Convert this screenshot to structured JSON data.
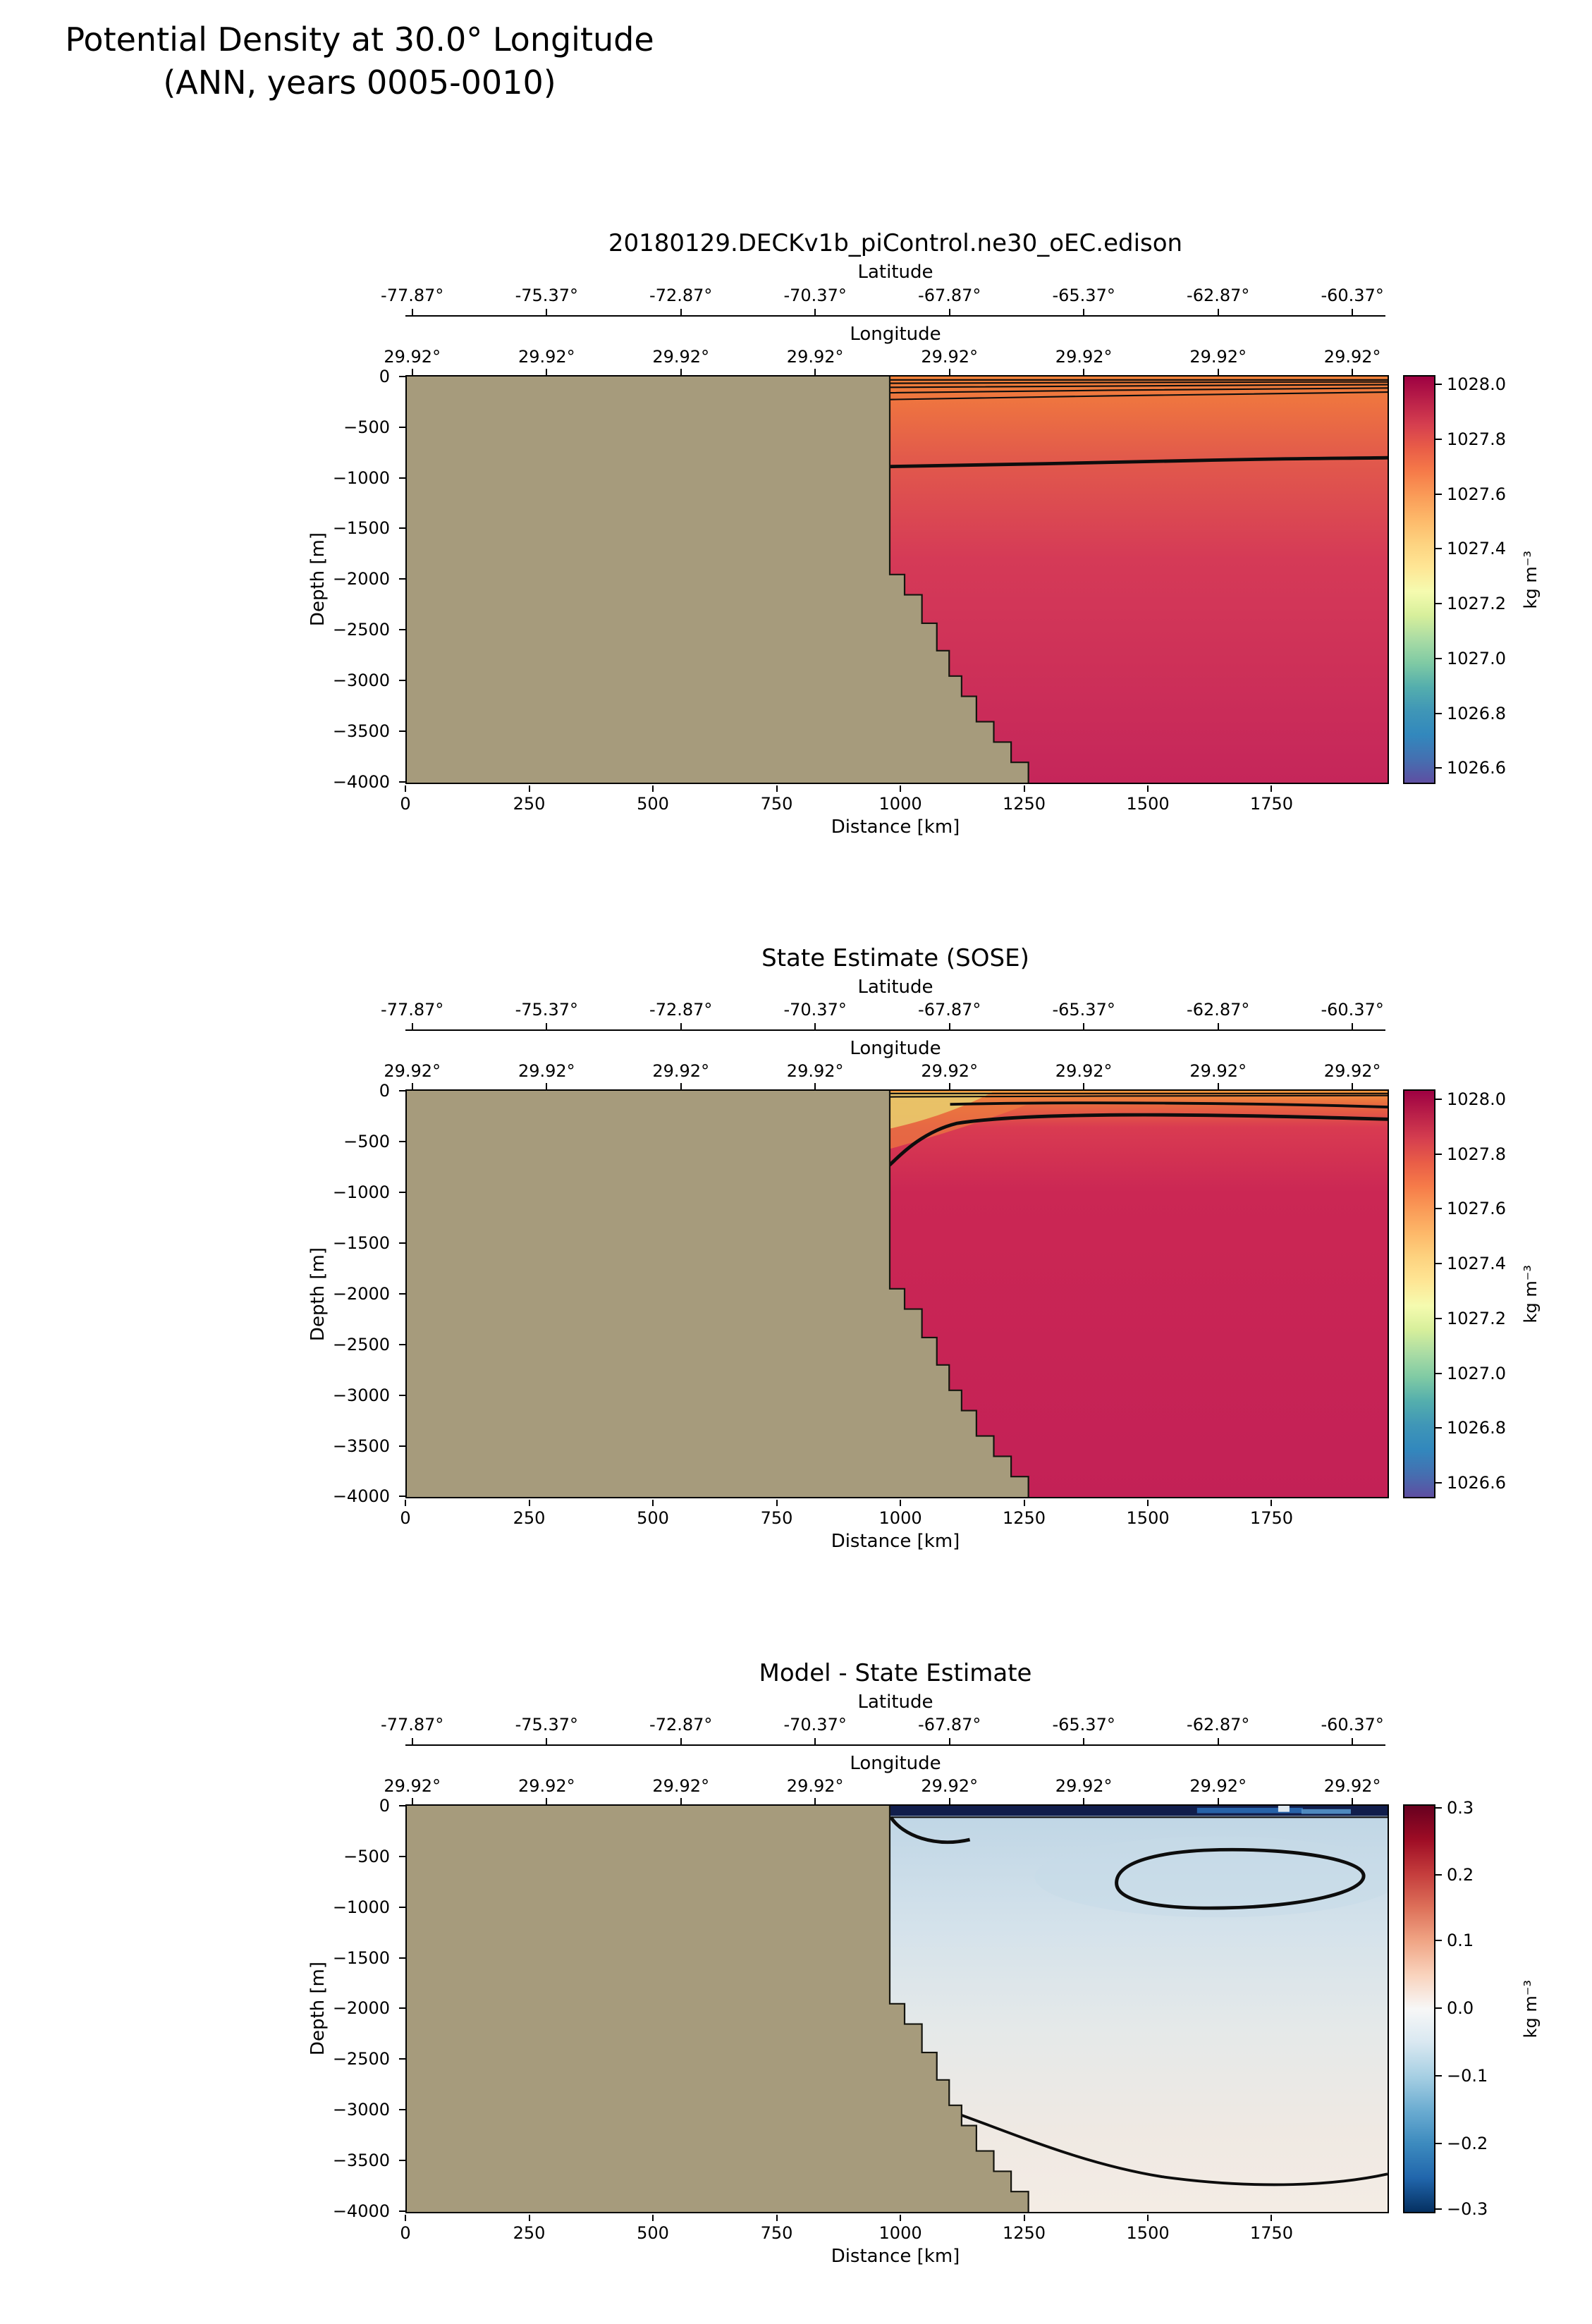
{
  "page": {
    "title_line1": "Potential Density at 30.0° Longitude",
    "title_line2": "(ANN, years 0005-0010)"
  },
  "axes": {
    "latitude": {
      "label": "Latitude",
      "ticks": [
        "-77.87°",
        "-75.37°",
        "-72.87°",
        "-70.37°",
        "-67.87°",
        "-65.37°",
        "-62.87°",
        "-60.37°"
      ],
      "positions_pct": [
        0.7,
        14.41,
        28.11,
        41.81,
        55.52,
        69.22,
        82.93,
        96.63
      ]
    },
    "longitude": {
      "label": "Longitude",
      "ticks": [
        "29.92°",
        "29.92°",
        "29.92°",
        "29.92°",
        "29.92°",
        "29.92°",
        "29.92°",
        "29.92°"
      ],
      "positions_pct": [
        0.7,
        14.41,
        28.11,
        41.81,
        55.52,
        69.22,
        82.93,
        96.63
      ]
    },
    "depth": {
      "label": "Depth [m]",
      "ticks": [
        "0",
        "−500",
        "−1000",
        "−1500",
        "−2000",
        "−2500",
        "−3000",
        "−3500",
        "−4000"
      ],
      "positions_pct": [
        0,
        12.5,
        25,
        37.5,
        50,
        62.5,
        75,
        87.5,
        100
      ]
    },
    "distance": {
      "label": "Distance [km]",
      "ticks": [
        "0",
        "250",
        "500",
        "750",
        "1000",
        "1250",
        "1500",
        "1750"
      ],
      "positions_pct": [
        0,
        12.63,
        25.25,
        37.88,
        50.51,
        63.13,
        75.76,
        88.38
      ]
    }
  },
  "panels": [
    {
      "title": "20180129.DECKv1b_piControl.ne30_oEC.edison",
      "colorbar": {
        "unit": "kg m⁻³",
        "ticks": [
          "1028.0",
          "1027.8",
          "1027.6",
          "1027.4",
          "1027.2",
          "1027.0",
          "1026.8",
          "1026.6"
        ],
        "positions_pct": [
          2.0,
          15.5,
          29.0,
          42.5,
          56.1,
          69.6,
          83.1,
          96.6
        ],
        "gradient": [
          "#9e0142",
          "#ba2049",
          "#d53e4f",
          "#e95d47",
          "#f67b49",
          "#fa9c58",
          "#fdb96a",
          "#fdd380",
          "#fee695",
          "#f5fbaf",
          "#d7ef9b",
          "#aadca4",
          "#7fcaa4",
          "#54aead",
          "#3f96b7",
          "#3288bd",
          "#4470b1",
          "#5e4fa2"
        ]
      }
    },
    {
      "title": "State Estimate (SOSE)",
      "colorbar": {
        "unit": "kg m⁻³",
        "ticks": [
          "1028.0",
          "1027.8",
          "1027.6",
          "1027.4",
          "1027.2",
          "1027.0",
          "1026.8",
          "1026.6"
        ],
        "positions_pct": [
          2.0,
          15.5,
          29.0,
          42.5,
          56.1,
          69.6,
          83.1,
          96.6
        ],
        "gradient": [
          "#9e0142",
          "#ba2049",
          "#d53e4f",
          "#e95d47",
          "#f67b49",
          "#fa9c58",
          "#fdb96a",
          "#fdd380",
          "#fee695",
          "#f5fbaf",
          "#d7ef9b",
          "#aadca4",
          "#7fcaa4",
          "#54aead",
          "#3f96b7",
          "#3288bd",
          "#4470b1",
          "#5e4fa2"
        ]
      }
    },
    {
      "title": "Model - State Estimate",
      "colorbar": {
        "unit": "kg m⁻³",
        "ticks": [
          "0.3",
          "0.2",
          "0.1",
          "0.0",
          "−0.1",
          "−0.2",
          "−0.3"
        ],
        "positions_pct": [
          0.5,
          17.0,
          33.3,
          50.0,
          66.7,
          83.3,
          99.5
        ],
        "gradient": [
          "#67001f",
          "#9e0c25",
          "#c43c3c",
          "#dd7059",
          "#f0a585",
          "#f9d3bd",
          "#f7f7f7",
          "#d9e8f1",
          "#a6cfe3",
          "#6bacd1",
          "#3c8abe",
          "#2166ac",
          "#053061"
        ]
      }
    }
  ],
  "chart_data": {
    "type": "heatmap",
    "figure_title": "Potential Density at 30.0° Longitude (ANN, years 0005-0010)",
    "x": {
      "label": "Distance [km]",
      "range": [
        0,
        1980
      ],
      "ticks": [
        0,
        250,
        500,
        750,
        1000,
        1250,
        1500,
        1750
      ]
    },
    "y": {
      "label": "Depth [m]",
      "range": [
        0,
        -4000
      ],
      "ticks": [
        0,
        -500,
        -1000,
        -1500,
        -2000,
        -2500,
        -3000,
        -3500,
        -4000
      ]
    },
    "top_axes": {
      "latitude_deg": [
        -77.87,
        -75.37,
        -72.87,
        -70.37,
        -67.87,
        -65.37,
        -62.87,
        -60.37
      ],
      "longitude_deg": [
        29.92,
        29.92,
        29.92,
        29.92,
        29.92,
        29.92,
        29.92,
        29.92
      ]
    },
    "land_color": "#a69b7c",
    "panels": [
      {
        "title": "20180129.DECKv1b_piControl.ne30_oEC.edison",
        "colorbar": {
          "unit": "kg m⁻³",
          "min": 1026.5,
          "max": 1028.05,
          "ticks": [
            1028.0,
            1027.8,
            1027.6,
            1027.4,
            1027.2,
            1027.0,
            1026.8,
            1026.6
          ],
          "colormap": "Spectral_r"
        },
        "bathymetry_km_m": [
          [
            0,
            0
          ],
          [
            975,
            0
          ],
          [
            975,
            -1950
          ],
          [
            1005,
            -1950
          ],
          [
            1005,
            -2150
          ],
          [
            1040,
            -2150
          ],
          [
            1040,
            -2430
          ],
          [
            1070,
            -2430
          ],
          [
            1070,
            -2700
          ],
          [
            1095,
            -2700
          ],
          [
            1095,
            -2950
          ],
          [
            1120,
            -2950
          ],
          [
            1120,
            -3150
          ],
          [
            1150,
            -3150
          ],
          [
            1150,
            -3400
          ],
          [
            1185,
            -3400
          ],
          [
            1185,
            -3600
          ],
          [
            1220,
            -3600
          ],
          [
            1220,
            -3800
          ],
          [
            1255,
            -3800
          ],
          [
            1255,
            -4000
          ],
          [
            0,
            -4000
          ]
        ],
        "field_summary": "Density ~1027.5 kg/m3 at surface (orange) increasing to ~1027.9 (deep crimson) at 4000 m; dense contour banding in the top 150 m east of the shelf; bold contour near 870 m depth running nearly flat to the east."
      },
      {
        "title": "State Estimate (SOSE)",
        "colorbar": {
          "unit": "kg m⁻³",
          "min": 1026.5,
          "max": 1028.05,
          "ticks": [
            1028.0,
            1027.8,
            1027.6,
            1027.4,
            1027.2,
            1027.0,
            1026.8,
            1026.6
          ],
          "colormap": "Spectral_r"
        },
        "bathymetry_km_m": "same as model panel",
        "field_summary": "Sharper stratification: yellow/orange surface wedge near shelf edge (975-1250 km), deep red (~1027.85) below ~400 m everywhere; bold contour rising from ~700 m at the shelf to ~250 m offshore, second bold contour near 130 m."
      },
      {
        "title": "Model - State Estimate",
        "colorbar": {
          "unit": "kg m⁻³",
          "min": -0.3,
          "max": 0.3,
          "ticks": [
            0.3,
            0.2,
            0.1,
            0.0,
            -0.1,
            -0.2,
            -0.3
          ],
          "colormap": "RdBu_r"
        },
        "bathymetry_km_m": "same as model panel",
        "field_summary": "Difference mostly -0.1 to 0 (pale blue) in upper 2000 m grading to ~0 to +0.05 (near white) below 2500 m; strong negative band (approx -0.3, dark navy) in the top ~100 m; closed bold contour loop between 1430-1950 km at 400-1000 m; bold contour crossing the deep basin from ~2900 m at the slope down toward ~3600 m."
      }
    ]
  }
}
